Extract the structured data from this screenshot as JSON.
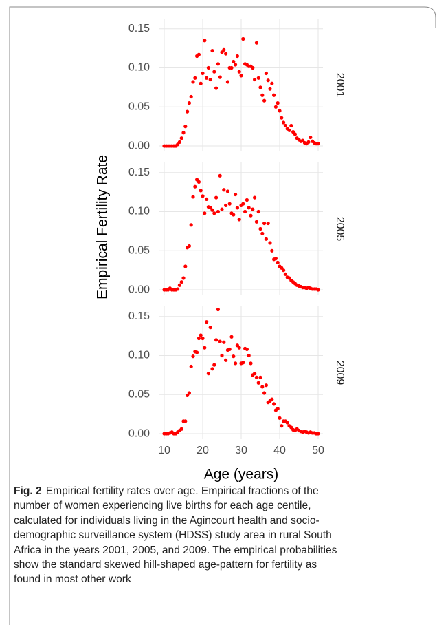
{
  "figure": {
    "ylabel": "Empirical Fertility Rate",
    "xlabel": "Age (years)"
  },
  "chart_data": [
    {
      "type": "scatter",
      "panel": "2001",
      "color": "#ff0000",
      "grid": true,
      "xlim": [
        8.75,
        51.25
      ],
      "ylim": [
        -0.007,
        0.163
      ],
      "yticks": [
        {
          "value": 0,
          "label": "0.00"
        },
        {
          "value": 0.05,
          "label": "0.05"
        },
        {
          "value": 0.1,
          "label": "0.10"
        },
        {
          "value": 0.15,
          "label": "0.15"
        }
      ],
      "x": [
        10,
        10.5,
        11,
        11.5,
        12,
        12.5,
        13,
        13.5,
        14,
        14.5,
        15,
        15.5,
        16,
        16.5,
        17,
        17.5,
        18,
        18.5,
        19,
        19.5,
        20,
        20.5,
        21,
        21.5,
        22,
        22.5,
        23,
        23.5,
        24,
        24.5,
        25,
        25.5,
        26,
        26.5,
        27,
        27.5,
        28,
        28.5,
        29,
        29.5,
        30,
        30.5,
        31,
        31.5,
        32,
        32.5,
        33,
        33.5,
        34,
        34.5,
        35,
        35.5,
        36,
        36.5,
        37,
        37.5,
        38,
        38.5,
        39,
        39.5,
        40,
        40.5,
        41,
        41.5,
        42,
        42.5,
        43,
        43.5,
        44,
        44.5,
        45,
        45.5,
        46,
        46.5,
        47,
        47.5,
        48,
        48.5,
        49,
        49.5,
        50
      ],
      "values": [
        0,
        0,
        0,
        0,
        0,
        0,
        0,
        0.002,
        0.005,
        0.01,
        0.017,
        0.025,
        0.044,
        0.055,
        0.063,
        0.082,
        0.087,
        0.115,
        0.117,
        0.08,
        0.093,
        0.135,
        0.087,
        0.1,
        0.085,
        0.122,
        0.095,
        0.074,
        0.105,
        0.088,
        0.12,
        0.123,
        0.118,
        0.082,
        0.1,
        0.1,
        0.108,
        0.104,
        0.115,
        0.095,
        0.09,
        0.137,
        0.105,
        0.104,
        0.102,
        0.102,
        0.1,
        0.085,
        0.132,
        0.087,
        0.075,
        0.065,
        0.058,
        0.093,
        0.084,
        0.073,
        0.08,
        0.065,
        0.05,
        0.055,
        0.045,
        0.036,
        0.03,
        0.026,
        0.022,
        0.02,
        0.026,
        0.018,
        0.015,
        0.01,
        0.008,
        0.006,
        0.007,
        0.004,
        0.003,
        0.005,
        0.011,
        0.006,
        0.004,
        0.003,
        0.003
      ]
    },
    {
      "type": "scatter",
      "panel": "2005",
      "color": "#ff0000",
      "grid": true,
      "xlim": [
        8.75,
        51.25
      ],
      "ylim": [
        -0.007,
        0.163
      ],
      "yticks": [
        {
          "value": 0,
          "label": "0.00"
        },
        {
          "value": 0.05,
          "label": "0.05"
        },
        {
          "value": 0.1,
          "label": "0.10"
        },
        {
          "value": 0.15,
          "label": "0.15"
        }
      ],
      "x": [
        10,
        10.5,
        11,
        11.5,
        12,
        12.5,
        13,
        13.5,
        14,
        14.5,
        15,
        15.5,
        16,
        16.5,
        17,
        17.5,
        18,
        18.5,
        19,
        19.5,
        20,
        20.5,
        21,
        21.5,
        22,
        22.5,
        23,
        23.5,
        24,
        24.5,
        25,
        25.5,
        26,
        26.5,
        27,
        27.5,
        28,
        28.5,
        29,
        29.5,
        30,
        30.5,
        31,
        31.5,
        32,
        32.5,
        33,
        33.5,
        34,
        34.5,
        35,
        35.5,
        36,
        36.5,
        37,
        37.5,
        38,
        38.5,
        39,
        39.5,
        40,
        40.5,
        41,
        41.5,
        42,
        42.5,
        43,
        43.5,
        44,
        44.5,
        45,
        45.5,
        46,
        46.5,
        47,
        47.5,
        48,
        48.5,
        49,
        49.5,
        50
      ],
      "values": [
        0,
        0,
        0,
        0.002,
        0,
        0,
        0,
        0.001,
        0.006,
        0.01,
        0.015,
        0.03,
        0.054,
        0.056,
        0.083,
        0.119,
        0.132,
        0.141,
        0.138,
        0.127,
        0.12,
        0.098,
        0.116,
        0.106,
        0.105,
        0.102,
        0.098,
        0.118,
        0.1,
        0.146,
        0.103,
        0.128,
        0.108,
        0.126,
        0.11,
        0.098,
        0.096,
        0.122,
        0.105,
        0.09,
        0.108,
        0.11,
        0.1,
        0.115,
        0.105,
        0.095,
        0.103,
        0.118,
        0.087,
        0.1,
        0.078,
        0.072,
        0.085,
        0.065,
        0.085,
        0.06,
        0.05,
        0.039,
        0.04,
        0.035,
        0.03,
        0.028,
        0.025,
        0.02,
        0.016,
        0.015,
        0.012,
        0.01,
        0.008,
        0.006,
        0.005,
        0.004,
        0.003,
        0.003,
        0.002,
        0.003,
        0.002,
        0.001,
        0.001,
        0.001,
        0
      ]
    },
    {
      "type": "scatter",
      "panel": "2009",
      "color": "#ff0000",
      "grid": true,
      "xlim": [
        8.75,
        51.25
      ],
      "ylim": [
        -0.007,
        0.163
      ],
      "xticks": [
        10,
        20,
        30,
        40,
        50
      ],
      "yticks": [
        {
          "value": 0,
          "label": "0.00"
        },
        {
          "value": 0.05,
          "label": "0.05"
        },
        {
          "value": 0.1,
          "label": "0.10"
        },
        {
          "value": 0.15,
          "label": "0.15"
        }
      ],
      "x": [
        10,
        10.5,
        11,
        11.5,
        12,
        12.5,
        13,
        13.5,
        14,
        14.5,
        15,
        15.5,
        16,
        16.5,
        17,
        17.5,
        18,
        18.5,
        19,
        19.5,
        20,
        20.5,
        21,
        21.5,
        22,
        22.5,
        23,
        23.5,
        24,
        24.5,
        25,
        25.5,
        26,
        26.5,
        27,
        27.5,
        28,
        28.5,
        29,
        29.5,
        30,
        30.5,
        31,
        31.5,
        32,
        32.5,
        33,
        33.5,
        34,
        34.5,
        35,
        35.5,
        36,
        36.5,
        37,
        37.5,
        38,
        38.5,
        39,
        39.5,
        40,
        40.5,
        41,
        41.5,
        42,
        42.5,
        43,
        43.5,
        44,
        44.5,
        45,
        45.5,
        46,
        46.5,
        47,
        47.5,
        48,
        48.5,
        49,
        49.5,
        50
      ],
      "values": [
        0,
        0,
        0,
        0.001,
        0.002,
        0,
        0,
        0.002,
        0.004,
        0.006,
        0.016,
        0.016,
        0.049,
        0.052,
        0.086,
        0.099,
        0.105,
        0.104,
        0.122,
        0.126,
        0.122,
        0.11,
        0.143,
        0.077,
        0.136,
        0.083,
        0.088,
        0.12,
        0.159,
        0.118,
        0.1,
        0.117,
        0.094,
        0.107,
        0.108,
        0.124,
        0.099,
        0.09,
        0.113,
        0.11,
        0.09,
        0.091,
        0.109,
        0.108,
        0.1,
        0.09,
        0.075,
        0.077,
        0.072,
        0.065,
        0.072,
        0.06,
        0.052,
        0.062,
        0.04,
        0.042,
        0.044,
        0.038,
        0.03,
        0.032,
        0.02,
        0.01,
        0.016,
        0.016,
        0.014,
        0.01,
        0.008,
        0.005,
        0.004,
        0.006,
        0.004,
        0.003,
        0.002,
        0.003,
        0.002,
        0.001,
        0.002,
        0.001,
        0.001,
        0,
        0
      ]
    }
  ],
  "caption": {
    "label": "Fig. 2",
    "lines": [
      "Empirical fertility rates over age. Empirical fractions of the",
      "number of women experiencing live births for each age centile,",
      "calculated for individuals living in the Agincourt health and socio-",
      "demographic surveillance system (HDSS) study area in rural South",
      "Africa in the years 2001, 2005, and 2009. The empirical probabilities",
      "show the standard skewed hill-shaped age-pattern for fertility as",
      "found in most other work"
    ]
  }
}
